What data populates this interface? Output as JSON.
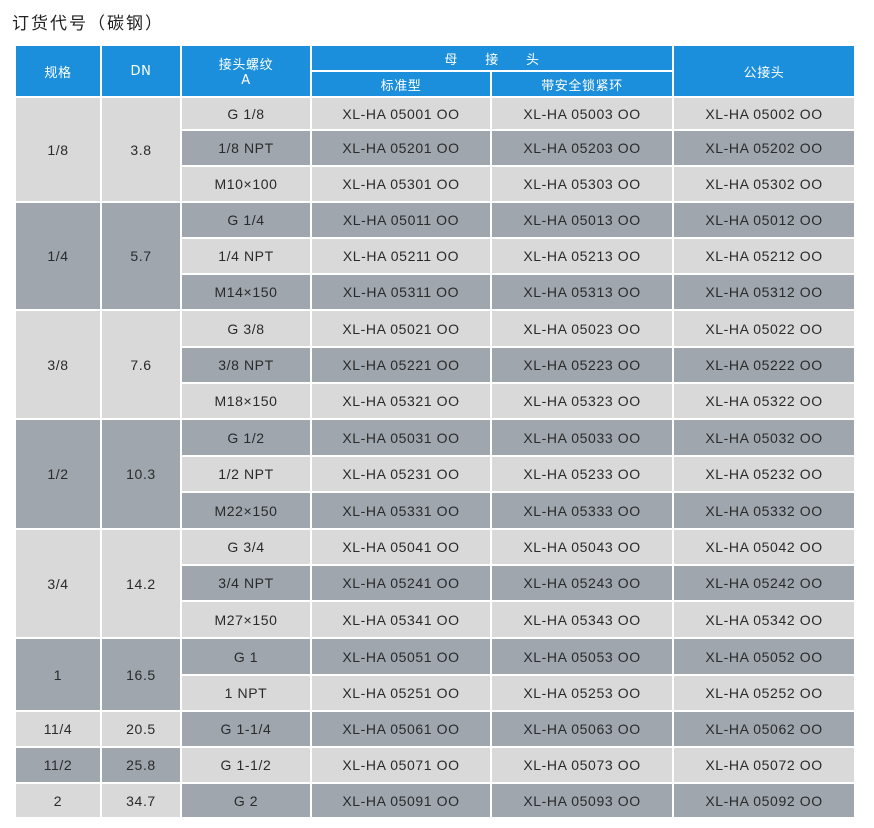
{
  "title": "订货代号（碳钢）",
  "header": {
    "spec": "规格",
    "dn": "DN",
    "thread_line1": "接头螺纹",
    "thread_line2": "A",
    "female": "母　　接　　头",
    "female_std": "标准型",
    "female_safe": "带安全锁紧环",
    "male": "公接头"
  },
  "groups": [
    {
      "spec": "1/8",
      "dn": "3.8",
      "shade": "light",
      "rows": [
        {
          "thread": "G 1/8",
          "std": "XL-HA 05001 OO",
          "safe": "XL-HA 05003 OO",
          "male": "XL-HA 05002 OO",
          "shade": "light"
        },
        {
          "thread": "1/8 NPT",
          "std": "XL-HA 05201 OO",
          "safe": "XL-HA 05203 OO",
          "male": "XL-HA 05202 OO",
          "shade": "dark"
        },
        {
          "thread": "M10×100",
          "std": "XL-HA 05301 OO",
          "safe": "XL-HA 05303 OO",
          "male": "XL-HA 05302 OO",
          "shade": "light"
        }
      ]
    },
    {
      "spec": "1/4",
      "dn": "5.7",
      "shade": "dark",
      "rows": [
        {
          "thread": "G 1/4",
          "std": "XL-HA 05011 OO",
          "safe": "XL-HA 05013 OO",
          "male": "XL-HA 05012 OO",
          "shade": "dark"
        },
        {
          "thread": "1/4 NPT",
          "std": "XL-HA 05211 OO",
          "safe": "XL-HA 05213 OO",
          "male": "XL-HA 05212 OO",
          "shade": "light"
        },
        {
          "thread": "M14×150",
          "std": "XL-HA 05311 OO",
          "safe": "XL-HA 05313 OO",
          "male": "XL-HA 05312 OO",
          "shade": "dark"
        }
      ]
    },
    {
      "spec": "3/8",
      "dn": "7.6",
      "shade": "light",
      "rows": [
        {
          "thread": "G 3/8",
          "std": "XL-HA 05021 OO",
          "safe": "XL-HA 05023 OO",
          "male": "XL-HA 05022 OO",
          "shade": "light"
        },
        {
          "thread": "3/8 NPT",
          "std": "XL-HA 05221 OO",
          "safe": "XL-HA 05223 OO",
          "male": "XL-HA 05222 OO",
          "shade": "dark"
        },
        {
          "thread": "M18×150",
          "std": "XL-HA 05321 OO",
          "safe": "XL-HA 05323 OO",
          "male": "XL-HA 05322 OO",
          "shade": "light"
        }
      ]
    },
    {
      "spec": "1/2",
      "dn": "10.3",
      "shade": "dark",
      "rows": [
        {
          "thread": "G 1/2",
          "std": "XL-HA 05031 OO",
          "safe": "XL-HA 05033 OO",
          "male": "XL-HA 05032 OO",
          "shade": "dark"
        },
        {
          "thread": "1/2 NPT",
          "std": "XL-HA 05231 OO",
          "safe": "XL-HA 05233 OO",
          "male": "XL-HA 05232 OO",
          "shade": "light"
        },
        {
          "thread": "M22×150",
          "std": "XL-HA 05331 OO",
          "safe": "XL-HA 05333 OO",
          "male": "XL-HA 05332 OO",
          "shade": "dark"
        }
      ]
    },
    {
      "spec": "3/4",
      "dn": "14.2",
      "shade": "light",
      "rows": [
        {
          "thread": "G 3/4",
          "std": "XL-HA 05041 OO",
          "safe": "XL-HA 05043 OO",
          "male": "XL-HA 05042 OO",
          "shade": "light"
        },
        {
          "thread": "3/4 NPT",
          "std": "XL-HA 05241 OO",
          "safe": "XL-HA 05243 OO",
          "male": "XL-HA 05242 OO",
          "shade": "dark"
        },
        {
          "thread": "M27×150",
          "std": "XL-HA 05341 OO",
          "safe": "XL-HA 05343 OO",
          "male": "XL-HA 05342 OO",
          "shade": "light"
        }
      ]
    },
    {
      "spec": "1",
      "dn": "16.5",
      "shade": "dark",
      "rows": [
        {
          "thread": "G 1",
          "std": "XL-HA 05051 OO",
          "safe": "XL-HA 05053 OO",
          "male": "XL-HA 05052 OO",
          "shade": "dark"
        },
        {
          "thread": "1 NPT",
          "std": "XL-HA 05251 OO",
          "safe": "XL-HA 05253 OO",
          "male": "XL-HA 05252 OO",
          "shade": "light"
        }
      ]
    },
    {
      "spec": "11/4",
      "dn": "20.5",
      "shade": "light",
      "rows": [
        {
          "thread": "G 1-1/4",
          "std": "XL-HA 05061 OO",
          "safe": "XL-HA 05063 OO",
          "male": "XL-HA 05062 OO",
          "shade": "dark"
        }
      ]
    },
    {
      "spec": "11/2",
      "dn": "25.8",
      "shade": "dark",
      "rows": [
        {
          "thread": "G 1-1/2",
          "std": "XL-HA 05071 OO",
          "safe": "XL-HA 05073 OO",
          "male": "XL-HA 05072 OO",
          "shade": "light"
        }
      ]
    },
    {
      "spec": "2",
      "dn": "34.7",
      "shade": "light",
      "rows": [
        {
          "thread": "G 2",
          "std": "XL-HA 05091 OO",
          "safe": "XL-HA 05093 OO",
          "male": "XL-HA 05092 OO",
          "shade": "dark"
        }
      ]
    }
  ],
  "colors": {
    "header": "#1c8fdc",
    "light": "#d9d9da",
    "dark": "#9fa6ae"
  }
}
